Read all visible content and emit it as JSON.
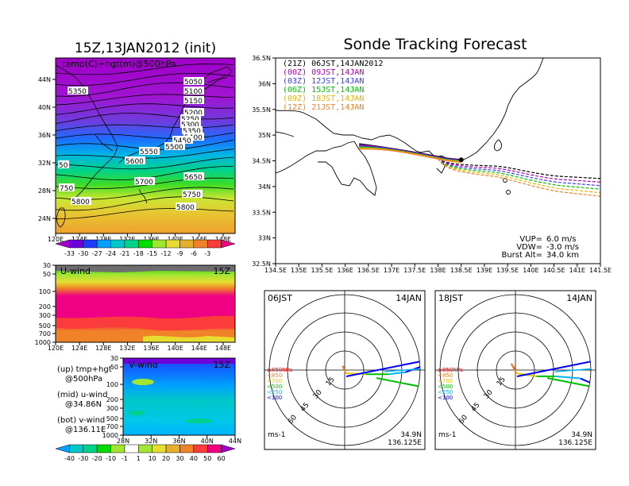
{
  "left": {
    "title": "15Z,13JAN2012 (init)",
    "top_map": {
      "label": "temp(C)+hgt(m)@500hPa",
      "lat_ticks": [
        "44N",
        "40N",
        "36N",
        "32N",
        "28N",
        "24N"
      ],
      "lon_ticks": [
        "120E",
        "124E",
        "128E",
        "132E",
        "136E",
        "140E",
        "144E",
        "148E"
      ],
      "contour_labels": [
        "5050",
        "5100",
        "5150",
        "5200",
        "5250",
        "5300",
        "5350",
        "5400",
        "5450",
        "5500",
        "5550",
        "5600",
        "5650",
        "5700",
        "5750",
        "5800",
        "5350",
        "5800",
        "50",
        "750"
      ],
      "colorbar_ticks": [
        "-33",
        "-30",
        "-27",
        "-24",
        "-21",
        "-18",
        "-15",
        "-12",
        "-9",
        "-6",
        "-3"
      ],
      "colorbar_colors": [
        "#a000c8",
        "#6e00dc",
        "#1e3cff",
        "#00a0ff",
        "#00c8c8",
        "#00d28c",
        "#00dc00",
        "#a0e632",
        "#e6dc32",
        "#e6af2d",
        "#f08228",
        "#fa3c3c",
        "#f00082"
      ]
    },
    "u_panel": {
      "label": "U-wind",
      "time": "15Z",
      "p_ticks": [
        "30",
        "50",
        "100",
        "200",
        "300",
        "500",
        "700",
        "1000"
      ],
      "lon_ticks": [
        "120E",
        "124E",
        "128E",
        "132E",
        "136E",
        "140E",
        "144E",
        "148E"
      ]
    },
    "v_panel": {
      "label": "V-wind",
      "time": "15Z",
      "p_ticks": [
        "30",
        "50",
        "100",
        "200",
        "300",
        "500",
        "700",
        "1000"
      ],
      "lat_ticks": [
        "28N",
        "32N",
        "36N",
        "40N",
        "44N"
      ]
    },
    "legend_notes": [
      {
        "line1": "(up) tmp+hgt",
        "line2": "@500hPa"
      },
      {
        "line1": "(mid) u-wind",
        "line2": "@34.86N"
      },
      {
        "line1": "(bot) v-wind",
        "line2": "@136.11E"
      }
    ],
    "wind_colorbar_ticks": [
      "-40",
      "-30",
      "-20",
      "-10",
      "-1",
      "1",
      "10",
      "20",
      "30",
      "40",
      "50",
      "60"
    ],
    "wind_colorbar_colors": [
      "#00a0ff",
      "#00c8c8",
      "#00d28c",
      "#00dc00",
      "#a0e632",
      "#ffffff",
      "#a0e632",
      "#e6dc32",
      "#e6af2d",
      "#f08228",
      "#fa3c3c",
      "#f00082",
      "#a000c8"
    ]
  },
  "right": {
    "title": "Sonde Tracking Forecast",
    "lat_ticks": [
      "36.5N",
      "36N",
      "35.5N",
      "35N",
      "34.5N",
      "34N",
      "33.5N",
      "33N",
      "32.5N"
    ],
    "lon_ticks": [
      "134.5E",
      "135E",
      "135.5E",
      "136E",
      "136.5E",
      "137E",
      "137.5E",
      "138E",
      "138.5E",
      "139E",
      "139.5E",
      "140E",
      "140.5E",
      "141E",
      "141.5E"
    ],
    "legend": [
      {
        "text": "(21Z)  06JST,14JAN2012",
        "color": "#000000"
      },
      {
        "text": "(00Z)  09JST,14JAN",
        "color": "#b000b0"
      },
      {
        "text": "(03Z)  12JST,14JAN",
        "color": "#3c3cff"
      },
      {
        "text": "(06Z)  15JST,14JAN",
        "color": "#00c000"
      },
      {
        "text": "(09Z)  18JST,14JAN",
        "color": "#e6b400"
      },
      {
        "text": "(12Z)  21JST,14JAN",
        "color": "#f08228"
      }
    ],
    "params": [
      {
        "label": "VUP=",
        "value": "6.0  m/s"
      },
      {
        "label": "VDW=",
        "value": "-3.0  m/s"
      },
      {
        "label": "Burst Alt=",
        "value": "34.0  km"
      }
    ]
  },
  "hodographs": [
    {
      "time": "06JST",
      "date": "14JAN",
      "lat": "34.9N",
      "lon": "136.125E",
      "unit": "ms-1"
    },
    {
      "time": "18JST",
      "date": "14JAN",
      "lat": "34.9N",
      "lon": "136.125E",
      "unit": "ms-1"
    }
  ],
  "hodo_ring_labels": [
    "15",
    "30",
    "45",
    "60"
  ],
  "hodo_levels": [
    {
      "text": "≥850hPa",
      "color": "#e60000"
    },
    {
      "text": "<850",
      "color": "#f08228"
    },
    {
      "text": "<700",
      "color": "#e6c800"
    },
    {
      "text": "<500",
      "color": "#00c000"
    },
    {
      "text": "<250",
      "color": "#00b4ff"
    },
    {
      "text": "<100",
      "color": "#0000ff"
    }
  ]
}
